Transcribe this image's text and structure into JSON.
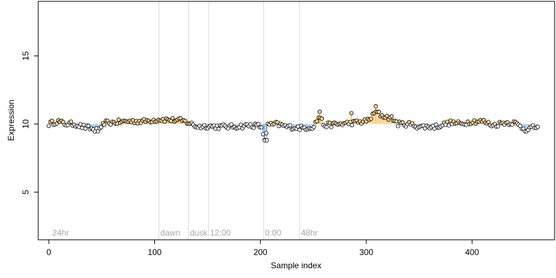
{
  "chart_data": {
    "type": "scatter",
    "title": "",
    "xlabel": "Sample index",
    "ylabel": "Expression",
    "xlim": [
      -10,
      478
    ],
    "ylim": [
      1.5,
      19
    ],
    "xticks": [
      0,
      100,
      200,
      300,
      400
    ],
    "yticks": [
      5,
      10,
      15
    ],
    "baseline": 10,
    "grid": false,
    "legend": "none",
    "annotations": [
      {
        "label": "24hr",
        "x": 2
      },
      {
        "label": "dawn",
        "x": 104
      },
      {
        "label": "dusk",
        "x": 132
      },
      {
        "label": "12:00",
        "x": 151
      },
      {
        "label": "0:00",
        "x": 203
      },
      {
        "label": "48hr",
        "x": 237
      }
    ],
    "colors": {
      "above": "#f5a623",
      "below": "#5b8fdb",
      "guide": "#d9d9d9",
      "marker_edge": "#000000",
      "annotation": "#a6a6a6"
    },
    "point_x_range": [
      0,
      462
    ],
    "y_anchors": [
      [
        0,
        10.0
      ],
      [
        8,
        10.2
      ],
      [
        15,
        10.0
      ],
      [
        25,
        10.0
      ],
      [
        32,
        9.8
      ],
      [
        38,
        9.7
      ],
      [
        44,
        9.55
      ],
      [
        49,
        9.5
      ],
      [
        52,
        10.1
      ],
      [
        60,
        10.1
      ],
      [
        75,
        10.2
      ],
      [
        90,
        10.2
      ],
      [
        100,
        10.3
      ],
      [
        105,
        10.35
      ],
      [
        115,
        10.3
      ],
      [
        125,
        10.25
      ],
      [
        132,
        10.1
      ],
      [
        140,
        9.8
      ],
      [
        150,
        9.85
      ],
      [
        160,
        9.8
      ],
      [
        175,
        9.8
      ],
      [
        190,
        9.9
      ],
      [
        200,
        9.85
      ],
      [
        204,
        8.9
      ],
      [
        207,
        9.9
      ],
      [
        215,
        10.0
      ],
      [
        225,
        9.8
      ],
      [
        240,
        9.7
      ],
      [
        250,
        9.8
      ],
      [
        256,
        10.6
      ],
      [
        260,
        9.9
      ],
      [
        275,
        10.0
      ],
      [
        290,
        10.1
      ],
      [
        300,
        10.2
      ],
      [
        305,
        10.5
      ],
      [
        309,
        10.9
      ],
      [
        315,
        10.6
      ],
      [
        325,
        10.4
      ],
      [
        330,
        10.0
      ],
      [
        340,
        10.0
      ],
      [
        350,
        9.8
      ],
      [
        365,
        9.8
      ],
      [
        380,
        10.1
      ],
      [
        390,
        10.0
      ],
      [
        400,
        10.2
      ],
      [
        410,
        10.2
      ],
      [
        420,
        9.9
      ],
      [
        430,
        10.1
      ],
      [
        440,
        10.1
      ],
      [
        450,
        9.6
      ],
      [
        462,
        9.8
      ]
    ],
    "y_spread": 0.18
  }
}
